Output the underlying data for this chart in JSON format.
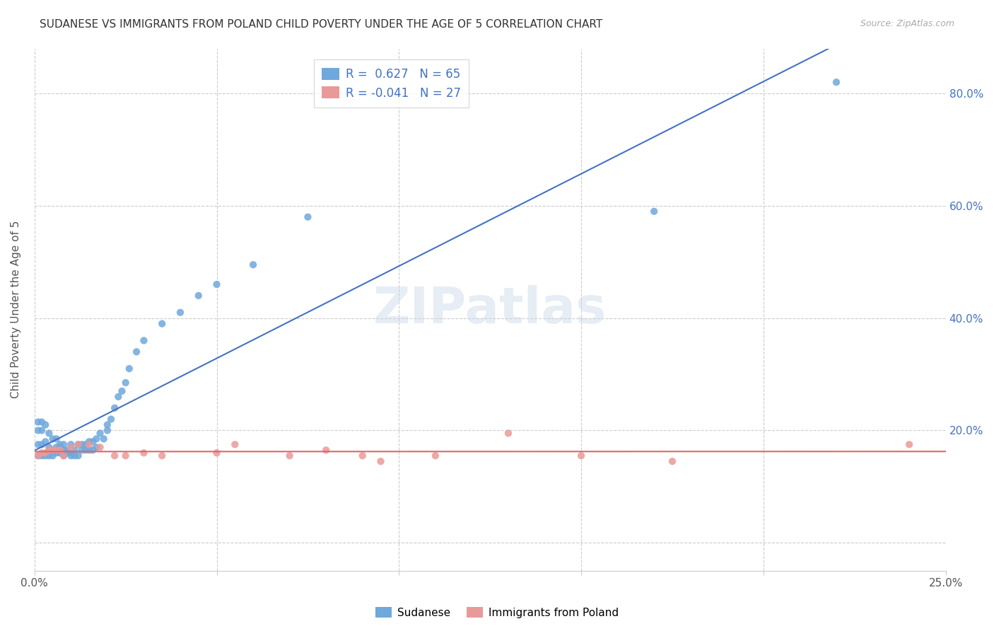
{
  "title": "SUDANESE VS IMMIGRANTS FROM POLAND CHILD POVERTY UNDER THE AGE OF 5 CORRELATION CHART",
  "source": "Source: ZipAtlas.com",
  "ylabel": "Child Poverty Under the Age of 5",
  "xlim": [
    0.0,
    0.25
  ],
  "ylim": [
    -0.05,
    0.88
  ],
  "x_ticks": [
    0.0,
    0.05,
    0.1,
    0.15,
    0.2,
    0.25
  ],
  "x_tick_labels": [
    "0.0%",
    "",
    "",
    "",
    "",
    "25.0%"
  ],
  "y_ticks": [
    0.0,
    0.2,
    0.4,
    0.6,
    0.8
  ],
  "y_tick_labels": [
    "",
    "20.0%",
    "40.0%",
    "60.0%",
    "80.0%"
  ],
  "legend_label1": "R =  0.627   N = 65",
  "legend_label2": "R = -0.041   N = 27",
  "legend_sublabel1": "Sudanese",
  "legend_sublabel2": "Immigrants from Poland",
  "color_blue": "#6fa8dc",
  "color_pink": "#ea9999",
  "line_blue": "#4472c4",
  "line_pink": "#e06666",
  "sudanese_x": [
    0.001,
    0.001,
    0.001,
    0.001,
    0.002,
    0.002,
    0.002,
    0.002,
    0.003,
    0.003,
    0.003,
    0.004,
    0.004,
    0.004,
    0.005,
    0.005,
    0.005,
    0.006,
    0.006,
    0.006,
    0.007,
    0.007,
    0.007,
    0.008,
    0.008,
    0.008,
    0.009,
    0.009,
    0.01,
    0.01,
    0.01,
    0.011,
    0.011,
    0.012,
    0.012,
    0.013,
    0.013,
    0.014,
    0.014,
    0.015,
    0.015,
    0.016,
    0.016,
    0.017,
    0.017,
    0.018,
    0.019,
    0.02,
    0.02,
    0.021,
    0.022,
    0.023,
    0.024,
    0.025,
    0.026,
    0.028,
    0.03,
    0.035,
    0.04,
    0.045,
    0.05,
    0.06,
    0.075,
    0.17,
    0.22
  ],
  "sudanese_y": [
    0.155,
    0.175,
    0.2,
    0.215,
    0.155,
    0.175,
    0.2,
    0.215,
    0.155,
    0.18,
    0.21,
    0.155,
    0.17,
    0.195,
    0.155,
    0.165,
    0.185,
    0.16,
    0.17,
    0.185,
    0.16,
    0.17,
    0.175,
    0.155,
    0.165,
    0.175,
    0.16,
    0.165,
    0.155,
    0.16,
    0.175,
    0.155,
    0.165,
    0.155,
    0.175,
    0.165,
    0.175,
    0.165,
    0.175,
    0.165,
    0.18,
    0.165,
    0.18,
    0.17,
    0.185,
    0.195,
    0.185,
    0.2,
    0.21,
    0.22,
    0.24,
    0.26,
    0.27,
    0.285,
    0.31,
    0.34,
    0.36,
    0.39,
    0.41,
    0.44,
    0.46,
    0.495,
    0.58,
    0.59,
    0.82
  ],
  "poland_x": [
    0.001,
    0.002,
    0.003,
    0.004,
    0.005,
    0.006,
    0.007,
    0.008,
    0.01,
    0.012,
    0.015,
    0.018,
    0.022,
    0.025,
    0.03,
    0.035,
    0.05,
    0.055,
    0.07,
    0.08,
    0.09,
    0.095,
    0.11,
    0.13,
    0.15,
    0.175,
    0.24
  ],
  "poland_y": [
    0.155,
    0.16,
    0.16,
    0.165,
    0.165,
    0.165,
    0.165,
    0.155,
    0.17,
    0.175,
    0.175,
    0.17,
    0.155,
    0.155,
    0.16,
    0.155,
    0.16,
    0.175,
    0.155,
    0.165,
    0.155,
    0.145,
    0.155,
    0.195,
    0.155,
    0.145,
    0.175
  ]
}
